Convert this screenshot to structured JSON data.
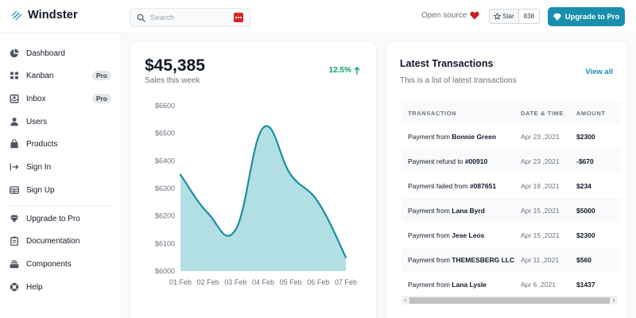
{
  "header": {
    "brand": "Windster",
    "search_placeholder": "Search",
    "open_source_label": "Open source",
    "github_star_label": "Star",
    "github_star_count": "838",
    "upgrade_label": "Upgrade to Pro",
    "accent_color": "#1a8fad"
  },
  "sidebar": {
    "items": [
      {
        "label": "Dashboard",
        "icon": "chart-pie-icon"
      },
      {
        "label": "Kanban",
        "icon": "grid-icon",
        "badge": "Pro"
      },
      {
        "label": "Inbox",
        "icon": "inbox-icon",
        "badge": "Pro"
      },
      {
        "label": "Users",
        "icon": "user-icon"
      },
      {
        "label": "Products",
        "icon": "shopping-bag-icon"
      },
      {
        "label": "Sign In",
        "icon": "sign-in-icon"
      },
      {
        "label": "Sign Up",
        "icon": "table-icon"
      }
    ],
    "secondary_items": [
      {
        "label": "Upgrade to Pro",
        "icon": "gem-icon"
      },
      {
        "label": "Documentation",
        "icon": "clipboard-icon"
      },
      {
        "label": "Components",
        "icon": "collection-icon"
      },
      {
        "label": "Help",
        "icon": "support-icon"
      }
    ]
  },
  "sales": {
    "value": "$45,385",
    "subtitle": "Sales this week",
    "growth": "12.5%"
  },
  "chart_data": {
    "type": "area",
    "title": "Sales this week",
    "categories": [
      "01 Feb",
      "02 Feb",
      "03 Feb",
      "04 Feb",
      "05 Feb",
      "06 Feb",
      "07 Feb"
    ],
    "series": [
      {
        "name": "Sales",
        "values": [
          6350,
          6210,
          6150,
          6520,
          6350,
          6250,
          6050
        ]
      }
    ],
    "y_ticks": [
      "$6000",
      "$6100",
      "$6200",
      "$6300",
      "$6400",
      "$6500",
      "$6600"
    ],
    "ylim": [
      6000,
      6600
    ],
    "xlabel": "",
    "ylabel": "",
    "grid": false,
    "legend": "none",
    "line_color": "#1a8fa0",
    "fill_color": "#b2dfe4"
  },
  "transactions": {
    "title": "Latest Transactions",
    "subtitle": "This is a list of latest transactions",
    "view_all": "View all",
    "columns": [
      "Transaction",
      "Date & Time",
      "Amount"
    ],
    "rows": [
      {
        "prefix": "Payment from ",
        "subject": "Bonnie Green",
        "date": "Apr 23 ,2021",
        "amount": "$2300"
      },
      {
        "prefix": "Payment refund to ",
        "subject": "#00910",
        "date": "Apr 23 ,2021",
        "amount": "-$670"
      },
      {
        "prefix": "Payment failed from ",
        "subject": "#087651",
        "date": "Apr 18 ,2021",
        "amount": "$234"
      },
      {
        "prefix": "Payment from ",
        "subject": "Lana Byrd",
        "date": "Apr 15 ,2021",
        "amount": "$5000"
      },
      {
        "prefix": "Payment from ",
        "subject": "Jese Leos",
        "date": "Apr 15 ,2021",
        "amount": "$2300"
      },
      {
        "prefix": "Payment from ",
        "subject": "THEMESBERG LLC",
        "date": "Apr 11 ,2021",
        "amount": "$560"
      },
      {
        "prefix": "Payment from ",
        "subject": "Lana Lysle",
        "date": "Apr 6 ,2021",
        "amount": "$1437"
      }
    ]
  }
}
